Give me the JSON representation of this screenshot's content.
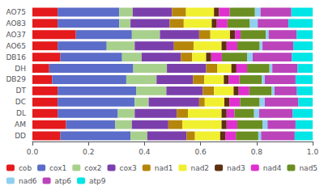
{
  "chart_data": {
    "type": "bar",
    "orientation": "horizontal",
    "stacked": true,
    "categories": [
      "AO75",
      "AO83",
      "AO37",
      "AO65",
      "DB16",
      "DH",
      "DB29",
      "DT",
      "DC",
      "DL",
      "AM",
      "DD"
    ],
    "series": [
      {
        "name": "cob",
        "color": "#e41a1c",
        "values": [
          0.09,
          0.09,
          0.155,
          0.09,
          0.1,
          0.06,
          0.07,
          0.09,
          0.09,
          0.09,
          0.12,
          0.1
        ]
      },
      {
        "name": "cox1",
        "color": "#5b6dc8",
        "values": [
          0.22,
          0.22,
          0.2,
          0.175,
          0.22,
          0.3,
          0.265,
          0.28,
          0.275,
          0.215,
          0.175,
          0.25
        ]
      },
      {
        "name": "cox2",
        "color": "#a8d08d",
        "values": [
          0.048,
          0.04,
          0.1,
          0.1,
          0.07,
          0.12,
          0.108,
          0.108,
          0.05,
          0.06,
          0.06,
          0.06
        ]
      },
      {
        "name": "cox3",
        "color": "#7b3fac",
        "values": [
          0.14,
          0.14,
          0.14,
          0.14,
          0.14,
          0.14,
          0.13,
          0.13,
          0.18,
          0.15,
          0.13,
          0.14
        ]
      },
      {
        "name": "nad1",
        "color": "#b5860a",
        "values": [
          0.05,
          0.05,
          0.04,
          0.07,
          0.04,
          0.04,
          0.04,
          0.04,
          0.02,
          0.04,
          0.05,
          0.03
        ]
      },
      {
        "name": "nad2",
        "color": "#f0f030",
        "values": [
          0.1,
          0.1,
          0.07,
          0.1,
          0.05,
          0.05,
          0.07,
          0.07,
          0.07,
          0.12,
          0.14,
          0.09
        ]
      },
      {
        "name": "nad3",
        "color": "#5c3010",
        "values": [
          0.018,
          0.018,
          0.018,
          0.018,
          0.018,
          0.018,
          0.018,
          0.018,
          0.018,
          0.018,
          0.018,
          0.018
        ]
      },
      {
        "name": "nad4",
        "color": "#e030d0",
        "values": [
          0.038,
          0.038,
          0.02,
          0.038,
          0.038,
          0.038,
          0.038,
          0.038,
          0.038,
          0.028,
          0.038,
          0.038
        ]
      },
      {
        "name": "nad5",
        "color": "#6b8e23",
        "values": [
          0.09,
          0.08,
          0.09,
          0.08,
          0.09,
          0.08,
          0.08,
          0.08,
          0.07,
          0.07,
          0.09,
          0.08
        ]
      },
      {
        "name": "nad6",
        "color": "#90d0f0",
        "values": [
          0.02,
          0.028,
          0.01,
          0.01,
          0.02,
          0.01,
          0.01,
          0.01,
          0.018,
          0.018,
          0.018,
          0.01
        ]
      },
      {
        "name": "atp6",
        "color": "#bb44bb",
        "values": [
          0.11,
          0.11,
          0.1,
          0.11,
          0.14,
          0.09,
          0.11,
          0.08,
          0.12,
          0.12,
          0.1,
          0.12
        ]
      },
      {
        "name": "atp9",
        "color": "#00e5e5",
        "values": [
          0.076,
          0.086,
          0.057,
          0.069,
          0.074,
          0.054,
          0.061,
          0.056,
          0.051,
          0.071,
          0.061,
          0.064
        ]
      }
    ],
    "xlim": [
      0,
      1
    ],
    "xticks": [
      {
        "value": 0,
        "label": "0.0"
      },
      0.2,
      0.4,
      0.6,
      0.8,
      {
        "value": 1,
        "label": "1.0"
      }
    ],
    "grid": false,
    "legend": "bottom"
  }
}
